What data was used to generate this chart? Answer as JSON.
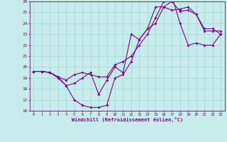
{
  "xlabel": "Windchill (Refroidissement éolien,°C)",
  "bg_color": "#c8ecec",
  "line_color": "#800080",
  "grid_color": "#a8d8d8",
  "xlim": [
    -0.5,
    23.5
  ],
  "ylim": [
    16,
    26
  ],
  "xticks": [
    0,
    1,
    2,
    3,
    4,
    5,
    6,
    7,
    8,
    9,
    10,
    11,
    12,
    13,
    14,
    15,
    16,
    17,
    18,
    19,
    20,
    21,
    22,
    23
  ],
  "yticks": [
    16,
    17,
    18,
    19,
    20,
    21,
    22,
    23,
    24,
    25,
    26
  ],
  "line1_x": [
    0,
    1,
    2,
    3,
    4,
    5,
    6,
    7,
    8,
    9,
    10,
    11,
    12,
    13,
    14,
    15,
    16,
    17,
    18,
    19,
    20,
    21,
    22,
    23
  ],
  "line1_y": [
    19.6,
    19.6,
    19.5,
    19.1,
    18.3,
    17.0,
    16.5,
    16.3,
    16.3,
    16.5,
    19.0,
    19.3,
    20.5,
    22.5,
    23.5,
    24.0,
    25.5,
    26.0,
    25.1,
    25.2,
    24.8,
    23.5,
    23.5,
    23.0
  ],
  "line2_x": [
    0,
    1,
    2,
    3,
    4,
    5,
    6,
    7,
    8,
    9,
    10,
    11,
    12,
    13,
    14,
    15,
    16,
    17,
    18,
    19,
    20,
    21,
    22,
    23
  ],
  "line2_y": [
    19.6,
    19.6,
    19.5,
    19.1,
    18.8,
    19.3,
    19.5,
    19.3,
    19.1,
    19.1,
    20.2,
    20.5,
    21.0,
    22.0,
    23.0,
    24.5,
    26.0,
    26.5,
    24.0,
    22.0,
    22.2,
    22.0,
    22.0,
    23.0
  ],
  "line3_x": [
    0,
    1,
    2,
    3,
    4,
    5,
    6,
    7,
    8,
    9,
    10,
    11,
    12,
    13,
    14,
    15,
    16,
    17,
    18,
    19,
    20,
    21,
    22,
    23
  ],
  "line3_y": [
    19.6,
    19.6,
    19.5,
    19.0,
    18.3,
    18.5,
    19.0,
    19.5,
    17.5,
    18.8,
    20.0,
    19.5,
    23.0,
    22.5,
    23.5,
    25.5,
    25.5,
    25.2,
    25.3,
    25.5,
    24.8,
    23.3,
    23.3,
    23.3
  ]
}
